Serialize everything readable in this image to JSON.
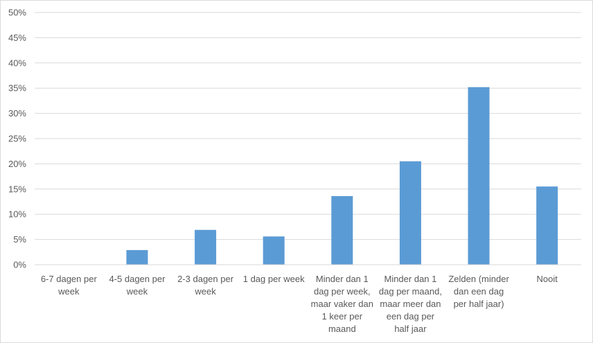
{
  "chart_data": {
    "type": "bar",
    "categories": [
      [
        "6-7 dagen per",
        "week"
      ],
      [
        "4-5 dagen per",
        "week"
      ],
      [
        "2-3 dagen per",
        "week"
      ],
      [
        "1 dag per week"
      ],
      [
        "Minder dan 1",
        "dag per week,",
        "maar vaker dan",
        "1 keer per",
        "maand"
      ],
      [
        "Minder dan 1",
        "dag per maand,",
        "maar meer dan",
        "een dag per",
        "half jaar"
      ],
      [
        "Zelden (minder",
        "dan een dag",
        "per half jaar)"
      ],
      [
        "Nooit"
      ]
    ],
    "values": [
      0,
      2.9,
      6.9,
      5.6,
      13.6,
      20.5,
      35.2,
      15.5
    ],
    "ylim": [
      0,
      50
    ],
    "yticks": [
      "0%",
      "5%",
      "10%",
      "15%",
      "20%",
      "25%",
      "30%",
      "35%",
      "40%",
      "45%",
      "50%"
    ],
    "title": "",
    "xlabel": "",
    "ylabel": "",
    "grid": true,
    "bar_color": "#5b9bd5",
    "grid_color": "#d9d9d9"
  }
}
